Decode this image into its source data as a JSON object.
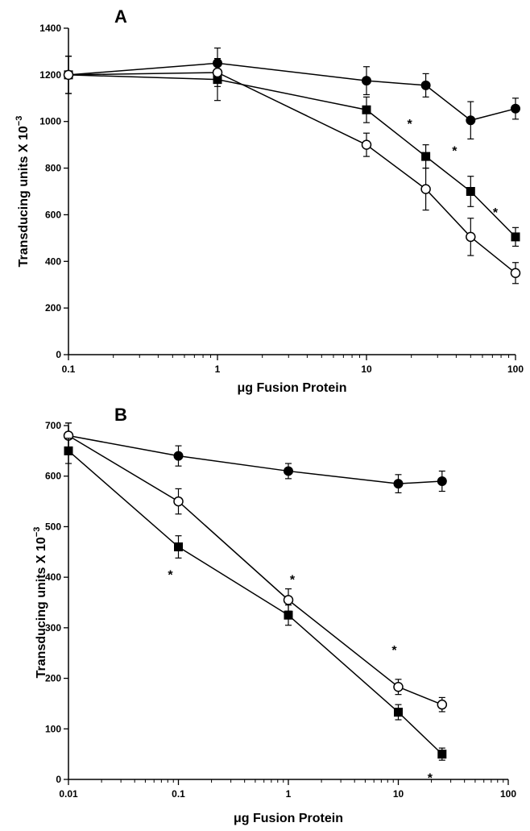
{
  "chart_data": [
    {
      "type": "line",
      "panel_label": "A",
      "xlabel": "μg Fusion Protein",
      "ylabel": "Transducing units X 10",
      "ylabel_sup": "−3",
      "x_scale": "log",
      "xlim": [
        0.1,
        100
      ],
      "ylim": [
        0,
        1400
      ],
      "x_ticks": [
        0.1,
        1,
        10,
        100
      ],
      "x_tick_labels": [
        "0.1",
        "1",
        "10",
        "100"
      ],
      "y_ticks": [
        0,
        200,
        400,
        600,
        800,
        1000,
        1200,
        1400
      ],
      "y_tick_labels": [
        "0",
        "200",
        "400",
        "600",
        "800",
        "1000",
        "1200",
        "1400"
      ],
      "grid": false,
      "series": [
        {
          "marker": "filled-circle",
          "x": [
            0.1,
            1,
            10,
            25,
            50,
            100
          ],
          "y": [
            1200,
            1250,
            1175,
            1155,
            1005,
            1055
          ],
          "err": [
            80,
            65,
            60,
            50,
            80,
            45
          ],
          "sig": [
            false,
            false,
            false,
            false,
            false,
            false
          ]
        },
        {
          "marker": "filled-square",
          "x": [
            0.1,
            1,
            10,
            25,
            50,
            100
          ],
          "y": [
            1200,
            1180,
            1050,
            850,
            700,
            505
          ],
          "err": [
            80,
            90,
            55,
            50,
            65,
            40
          ],
          "sig": [
            false,
            false,
            false,
            true,
            true,
            true
          ]
        },
        {
          "marker": "open-circle",
          "x": [
            0.1,
            1,
            10,
            25,
            50,
            100
          ],
          "y": [
            1200,
            1210,
            900,
            710,
            505,
            350
          ],
          "err": [
            80,
            60,
            50,
            90,
            80,
            45
          ],
          "sig": [
            false,
            false,
            false,
            false,
            false,
            false
          ]
        }
      ]
    },
    {
      "type": "line",
      "panel_label": "B",
      "xlabel": "μg Fusion Protein",
      "ylabel": "Transducing units X 10",
      "ylabel_sup": "−3",
      "x_scale": "log",
      "xlim": [
        0.01,
        100
      ],
      "ylim": [
        0,
        700
      ],
      "x_ticks": [
        0.01,
        0.1,
        1,
        10,
        100
      ],
      "x_tick_labels": [
        "0.01",
        "0.1",
        "1",
        "10",
        "100"
      ],
      "y_ticks": [
        0,
        100,
        200,
        300,
        400,
        500,
        600,
        700
      ],
      "y_tick_labels": [
        "0",
        "100",
        "200",
        "300",
        "400",
        "500",
        "600",
        "700"
      ],
      "grid": false,
      "series": [
        {
          "marker": "filled-circle",
          "x": [
            0.01,
            0.1,
            1,
            10,
            25
          ],
          "y": [
            680,
            640,
            610,
            585,
            590
          ],
          "err": [
            25,
            20,
            15,
            18,
            20
          ],
          "sig": [
            false,
            false,
            false,
            false,
            false
          ]
        },
        {
          "marker": "open-circle",
          "x": [
            0.01,
            0.1,
            1,
            10,
            25
          ],
          "y": [
            680,
            550,
            355,
            183,
            148
          ],
          "err": [
            25,
            25,
            22,
            15,
            14
          ],
          "sig": [
            false,
            false,
            true,
            true,
            false
          ]
        },
        {
          "marker": "filled-square",
          "x": [
            0.01,
            0.1,
            1,
            10,
            25
          ],
          "y": [
            650,
            460,
            325,
            133,
            50
          ],
          "err": [
            25,
            22,
            20,
            15,
            12
          ],
          "sig": [
            false,
            true,
            false,
            false,
            true
          ]
        }
      ]
    }
  ],
  "significance_mark": "*"
}
